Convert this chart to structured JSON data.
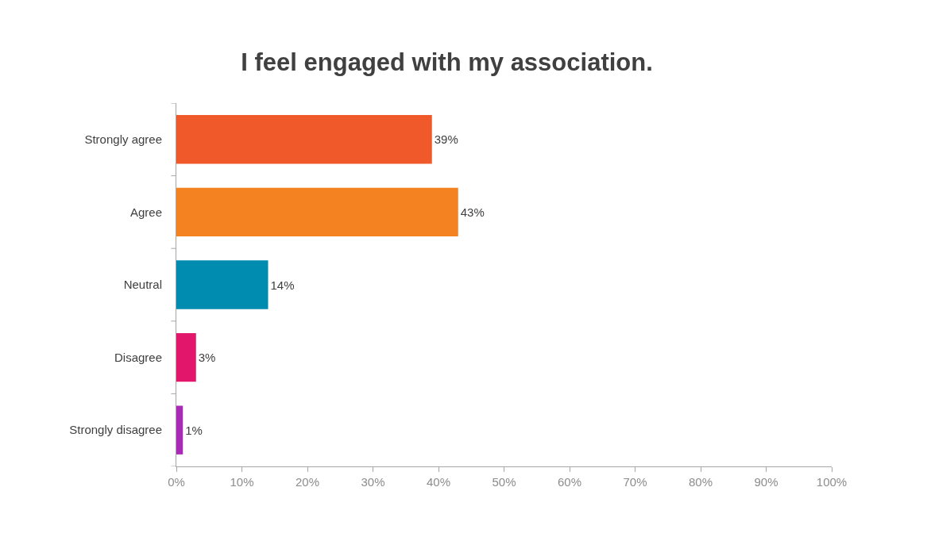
{
  "chart_data": {
    "type": "bar",
    "orientation": "horizontal",
    "title": "I feel engaged with my association.",
    "categories": [
      "Strongly agree",
      "Agree",
      "Neutral",
      "Disagree",
      "Strongly disagree"
    ],
    "values": [
      39,
      43,
      14,
      3,
      1
    ],
    "value_labels": [
      "39%",
      "43%",
      "14%",
      "3%",
      "1%"
    ],
    "colors": [
      "#f05a2a",
      "#f58220",
      "#008bb0",
      "#e2166b",
      "#a92bb5"
    ],
    "xlim": [
      0,
      100
    ],
    "xticks": [
      {
        "value": 0,
        "label": "0%"
      },
      {
        "value": 10,
        "label": "10%"
      },
      {
        "value": 20,
        "label": "20%"
      },
      {
        "value": 30,
        "label": "30%"
      },
      {
        "value": 40,
        "label": "40%"
      },
      {
        "value": 50,
        "label": "50%"
      },
      {
        "value": 60,
        "label": "60%"
      },
      {
        "value": 70,
        "label": "70%"
      },
      {
        "value": 80,
        "label": "80%"
      },
      {
        "value": 90,
        "label": "90%"
      },
      {
        "value": 100,
        "label": "100%"
      }
    ]
  }
}
